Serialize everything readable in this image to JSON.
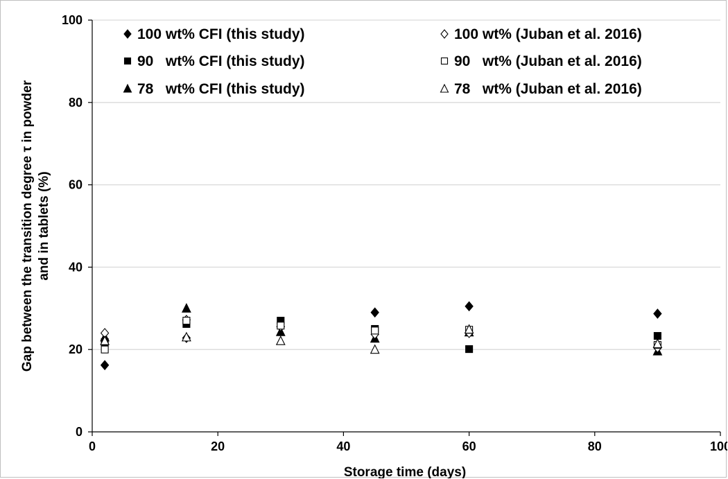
{
  "chart_data": {
    "type": "scatter",
    "title": "",
    "xlabel": "Storage time (days)",
    "ylabel_lines": [
      "Gap between the transition degree τ in powder",
      "and in tablets (%)"
    ],
    "xlim": [
      0,
      100
    ],
    "ylim": [
      0,
      100
    ],
    "xticks": [
      0,
      20,
      40,
      60,
      80,
      100
    ],
    "yticks": [
      0,
      20,
      40,
      60,
      80,
      100
    ],
    "grid": "horizontal",
    "legend_position": "top",
    "series": [
      {
        "name": "100 wt% CFI (this study)",
        "marker": "diamond",
        "fill": "filled",
        "x": [
          2,
          15,
          30,
          45,
          60,
          90
        ],
        "y": [
          16.2,
          22.8,
          25.5,
          29.0,
          30.5,
          28.7
        ]
      },
      {
        "name": "90   wt% CFI (this study)",
        "marker": "square",
        "fill": "filled",
        "x": [
          2,
          15,
          30,
          45,
          60,
          90
        ],
        "y": [
          21.8,
          26.2,
          27.0,
          25.0,
          20.1,
          23.3
        ]
      },
      {
        "name": "78   wt% CFI (this study)",
        "marker": "triangle",
        "fill": "filled",
        "x": [
          2,
          15,
          30,
          45,
          60,
          90
        ],
        "y": [
          23.0,
          30.0,
          24.3,
          22.7,
          24.2,
          19.6
        ]
      },
      {
        "name": "100 wt% (Juban et al. 2016)",
        "marker": "diamond",
        "fill": "open",
        "x": [
          2,
          15,
          30,
          45,
          60,
          90
        ],
        "y": [
          24.0,
          27.2,
          25.6,
          23.7,
          24.0,
          20.4
        ]
      },
      {
        "name": "90   wt% (Juban et al. 2016)",
        "marker": "square",
        "fill": "open",
        "x": [
          2,
          15,
          30,
          45,
          60,
          90
        ],
        "y": [
          20.0,
          27.0,
          25.8,
          24.6,
          24.8,
          21.1
        ]
      },
      {
        "name": "78   wt% (Juban et al. 2016)",
        "marker": "triangle",
        "fill": "open",
        "x": [
          2,
          15,
          30,
          45,
          60,
          90
        ],
        "y": [
          22.1,
          23.0,
          22.1,
          20.0,
          24.9,
          21.4
        ]
      }
    ]
  },
  "colors": {
    "marker": "#000000",
    "grid": "#d9d9d9",
    "axis": "#000000"
  }
}
